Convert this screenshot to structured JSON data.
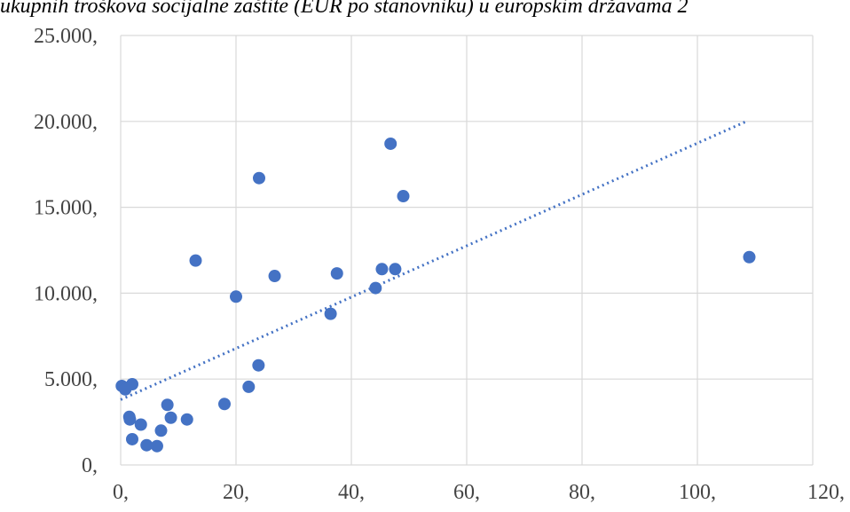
{
  "chart_data": {
    "type": "scatter",
    "title": "ukupnih troškova socijalne zaštite (EUR po stanovniku) u europskim državama 2",
    "xlim": [
      0,
      120
    ],
    "ylim": [
      0,
      25000
    ],
    "x_ticks": [
      0,
      20,
      40,
      60,
      80,
      100,
      120
    ],
    "x_tick_labels": [
      "0,",
      "20,",
      "40,",
      "60,",
      "80,",
      "100,",
      "120,"
    ],
    "y_ticks": [
      0,
      5000,
      10000,
      15000,
      20000,
      25000
    ],
    "y_tick_labels": [
      "0,",
      "5.000,",
      "10.000,",
      "15.000,",
      "20.000,",
      "25.000,"
    ],
    "grid": true,
    "series": [
      {
        "color": "#4472c4",
        "points": [
          {
            "x": 0.2,
            "y": 4600
          },
          {
            "x": 0.8,
            "y": 4400
          },
          {
            "x": 2.0,
            "y": 4700
          },
          {
            "x": 1.5,
            "y": 2800
          },
          {
            "x": 1.6,
            "y": 2650
          },
          {
            "x": 2.0,
            "y": 1500
          },
          {
            "x": 3.5,
            "y": 2350
          },
          {
            "x": 4.5,
            "y": 1150
          },
          {
            "x": 6.3,
            "y": 1100
          },
          {
            "x": 7.0,
            "y": 2000
          },
          {
            "x": 8.1,
            "y": 3500
          },
          {
            "x": 8.7,
            "y": 2750
          },
          {
            "x": 11.5,
            "y": 2650
          },
          {
            "x": 13.0,
            "y": 11900
          },
          {
            "x": 18.0,
            "y": 3550
          },
          {
            "x": 20.0,
            "y": 9800
          },
          {
            "x": 22.2,
            "y": 4550
          },
          {
            "x": 23.9,
            "y": 5800
          },
          {
            "x": 24.0,
            "y": 16700
          },
          {
            "x": 26.7,
            "y": 11000
          },
          {
            "x": 36.4,
            "y": 8800
          },
          {
            "x": 37.5,
            "y": 11150
          },
          {
            "x": 44.2,
            "y": 10300
          },
          {
            "x": 45.3,
            "y": 11400
          },
          {
            "x": 46.8,
            "y": 18700
          },
          {
            "x": 47.6,
            "y": 11400
          },
          {
            "x": 49.0,
            "y": 15650
          },
          {
            "x": 109.0,
            "y": 12100
          }
        ]
      }
    ],
    "trendline": {
      "type": "linear",
      "color": "#4472c4",
      "from": [
        0,
        3800
      ],
      "to": [
        108.5,
        20000
      ]
    }
  }
}
